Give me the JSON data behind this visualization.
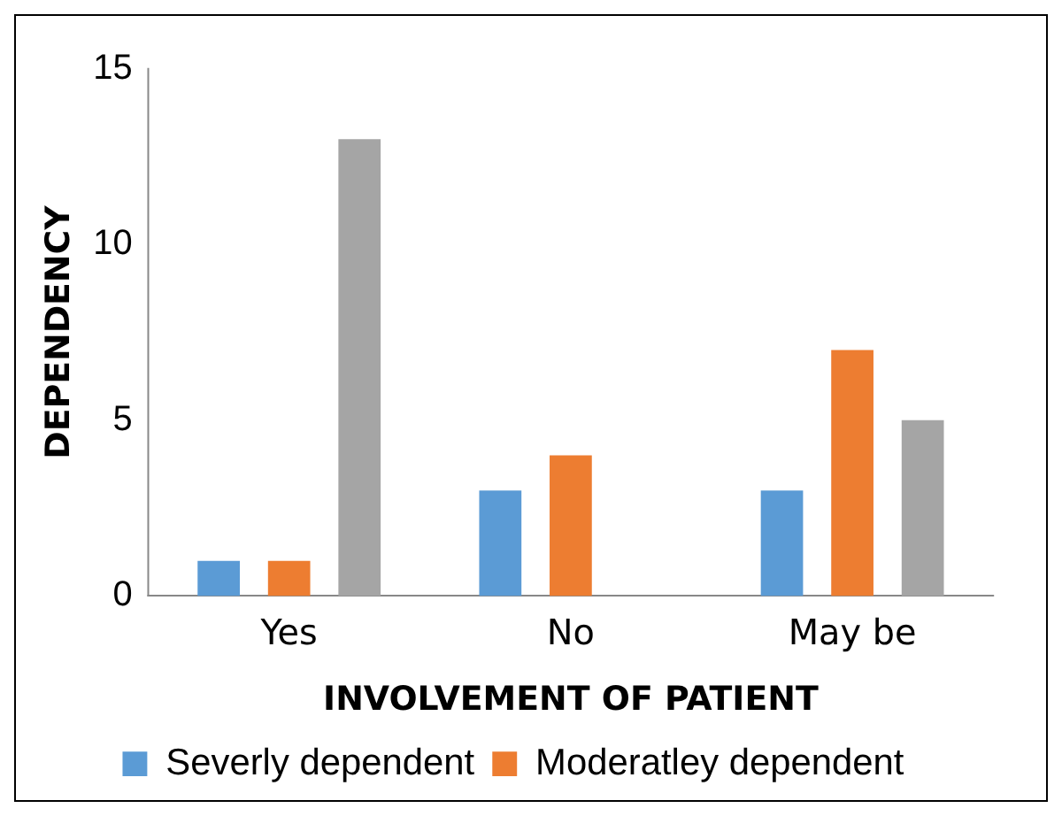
{
  "chart_data": {
    "type": "bar",
    "xlabel": "INVOLVEMENT OF PATIENT",
    "ylabel": "DEPENDENCY",
    "categories": [
      "Yes",
      "No",
      "May be"
    ],
    "series": [
      {
        "name": "Severly dependent",
        "color": "#5b9bd5",
        "values": [
          1,
          3,
          3
        ]
      },
      {
        "name": "Moderatley dependent",
        "color": "#ed7d31",
        "values": [
          1,
          4,
          7
        ]
      },
      {
        "color": "#a5a5a5",
        "values": [
          13,
          0,
          5
        ]
      }
    ],
    "ylim": [
      0,
      15
    ],
    "yticks": [
      0,
      5,
      10,
      15
    ],
    "grid": false,
    "legend": "bottom"
  }
}
